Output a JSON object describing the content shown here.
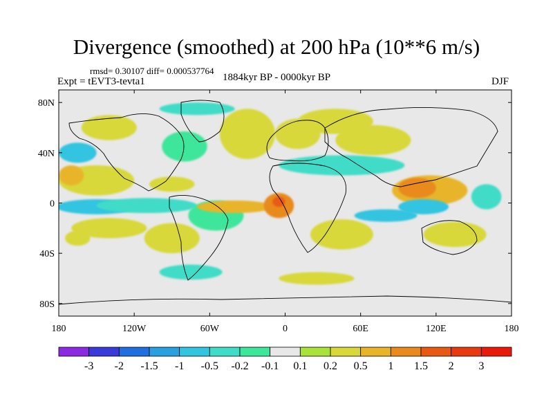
{
  "title": "Divergence (smoothed) at 200 hPa (10**6 m/s)",
  "stats": "rmsd= 0.30107 diff= 0.000537764",
  "experiment": "Expt = tEVT3-tevta1",
  "period": "1884kyr BP - 0000kyr BP",
  "season": "DJF",
  "lat_ticks": [
    {
      "value": 80,
      "label": "80N"
    },
    {
      "value": 40,
      "label": "40N"
    },
    {
      "value": 0,
      "label": "0"
    },
    {
      "value": -40,
      "label": "40S"
    },
    {
      "value": -80,
      "label": "80S"
    }
  ],
  "lon_ticks": [
    {
      "value": -180,
      "label": "180"
    },
    {
      "value": -120,
      "label": "120W"
    },
    {
      "value": -60,
      "label": "60W"
    },
    {
      "value": 0,
      "label": "0"
    },
    {
      "value": 60,
      "label": "60E"
    },
    {
      "value": 120,
      "label": "120E"
    },
    {
      "value": 180,
      "label": "180"
    }
  ],
  "colorbar": {
    "colors": [
      "#8a2be2",
      "#3a3ad9",
      "#1f6fe0",
      "#2aa0e0",
      "#33c4e0",
      "#40dcc8",
      "#3de69a",
      "#e8e8e8",
      "#a8e23a",
      "#d8d83a",
      "#e8b52a",
      "#e88a1e",
      "#e85a14",
      "#e83a10",
      "#e81a0a"
    ],
    "labels": [
      "-3",
      "-2",
      "-1.5",
      "-1",
      "-0.5",
      "-0.2",
      "-0.1",
      "0.1",
      "0.2",
      "0.5",
      "1",
      "1.5",
      "2",
      "3"
    ]
  },
  "map_data": {
    "lon_range": [
      -180,
      180
    ],
    "lat_range": [
      -90,
      90
    ],
    "background_color": "#e8e8e8",
    "blobs": [
      {
        "lon": -150,
        "lat": 18,
        "rlon": 30,
        "rlat": 12,
        "cls": 9
      },
      {
        "lon": -170,
        "lat": 22,
        "rlon": 10,
        "rlat": 8,
        "cls": 10
      },
      {
        "lon": -140,
        "lat": 60,
        "rlon": 22,
        "rlat": 10,
        "cls": 9
      },
      {
        "lon": -150,
        "lat": -3,
        "rlon": 32,
        "rlat": 6,
        "cls": 4
      },
      {
        "lon": -110,
        "lat": -2,
        "rlon": 40,
        "rlat": 6,
        "cls": 5
      },
      {
        "lon": -140,
        "lat": -20,
        "rlon": 30,
        "rlat": 8,
        "cls": 9
      },
      {
        "lon": -165,
        "lat": -28,
        "rlon": 10,
        "rlat": 6,
        "cls": 9
      },
      {
        "lon": -90,
        "lat": -28,
        "rlon": 22,
        "rlat": 12,
        "cls": 9
      },
      {
        "lon": -55,
        "lat": -10,
        "rlon": 22,
        "rlat": 12,
        "cls": 6
      },
      {
        "lon": -40,
        "lat": -3,
        "rlon": 30,
        "rlat": 5,
        "cls": 10
      },
      {
        "lon": -5,
        "lat": -2,
        "rlon": 12,
        "rlat": 10,
        "cls": 11
      },
      {
        "lon": -5,
        "lat": 1,
        "rlon": 5,
        "rlat": 4,
        "cls": 12
      },
      {
        "lon": -90,
        "lat": 15,
        "rlon": 18,
        "rlat": 6,
        "cls": 9
      },
      {
        "lon": -80,
        "lat": 45,
        "rlon": 18,
        "rlat": 12,
        "cls": 6
      },
      {
        "lon": -30,
        "lat": 55,
        "rlon": 22,
        "rlat": 20,
        "cls": 9
      },
      {
        "lon": -70,
        "lat": 75,
        "rlon": 30,
        "rlat": 5,
        "cls": 5
      },
      {
        "lon": 10,
        "lat": 55,
        "rlon": 18,
        "rlat": 12,
        "cls": 9
      },
      {
        "lon": 40,
        "lat": 65,
        "rlon": 30,
        "rlat": 10,
        "cls": 9
      },
      {
        "lon": 45,
        "lat": 30,
        "rlon": 50,
        "rlat": 8,
        "cls": 5
      },
      {
        "lon": 70,
        "lat": 50,
        "rlon": 30,
        "rlat": 12,
        "cls": 9
      },
      {
        "lon": 115,
        "lat": 10,
        "rlon": 30,
        "rlat": 12,
        "cls": 10
      },
      {
        "lon": 105,
        "lat": 12,
        "rlon": 15,
        "rlat": 8,
        "cls": 11
      },
      {
        "lon": 135,
        "lat": -25,
        "rlon": 25,
        "rlat": 10,
        "cls": 9
      },
      {
        "lon": 45,
        "lat": -25,
        "rlon": 25,
        "rlat": 12,
        "cls": 9
      },
      {
        "lon": 25,
        "lat": -60,
        "rlon": 30,
        "rlat": 5,
        "cls": 9
      },
      {
        "lon": -75,
        "lat": -55,
        "rlon": 25,
        "rlat": 6,
        "cls": 5
      },
      {
        "lon": -165,
        "lat": 40,
        "rlon": 15,
        "rlat": 8,
        "cls": 4
      },
      {
        "lon": 110,
        "lat": -3,
        "rlon": 20,
        "rlat": 6,
        "cls": 4
      },
      {
        "lon": 160,
        "lat": 5,
        "rlon": 12,
        "rlat": 10,
        "cls": 5
      },
      {
        "lon": 80,
        "lat": -10,
        "rlon": 25,
        "rlat": 5,
        "cls": 4
      }
    ]
  }
}
